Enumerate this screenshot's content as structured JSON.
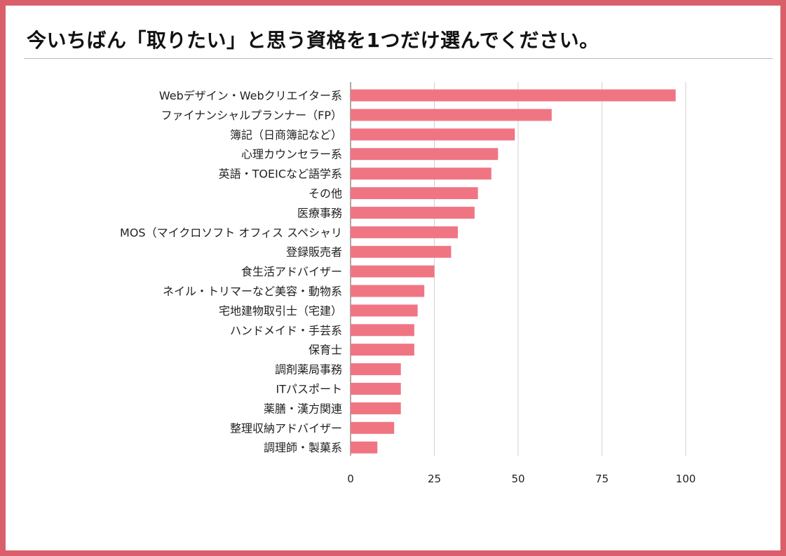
{
  "title": "今いちばん「取りたい」と思う資格を1つだけ選んでください。",
  "colors": {
    "border": "#d9606b",
    "bar": "#f07583",
    "grid": "#cfcfcf"
  },
  "chart_data": {
    "type": "bar",
    "orientation": "horizontal",
    "title": "",
    "xlabel": "",
    "ylabel": "",
    "xlim": [
      0,
      100
    ],
    "ticks": [
      0,
      25,
      50,
      75,
      100
    ],
    "grid": true,
    "categories": [
      "Webデザイン・Webクリエイター系",
      "ファイナンシャルプランナー（FP）",
      "簿記（日商簿記など）",
      "心理カウンセラー系",
      "英語・TOEICなど語学系",
      "その他",
      "医療事務",
      "MOS（マイクロソフト オフィス スペシャリ",
      "登録販売者",
      "食生活アドバイザー",
      "ネイル・トリマーなど美容・動物系",
      "宅地建物取引士（宅建）",
      "ハンドメイド・手芸系",
      "保育士",
      "調剤薬局事務",
      "ITパスポート",
      "薬膳・漢方関連",
      "整理収納アドバイザー",
      "調理師・製菓系"
    ],
    "values": [
      97,
      60,
      49,
      44,
      42,
      38,
      37,
      32,
      30,
      25,
      22,
      20,
      19,
      19,
      15,
      15,
      15,
      13,
      8
    ]
  }
}
